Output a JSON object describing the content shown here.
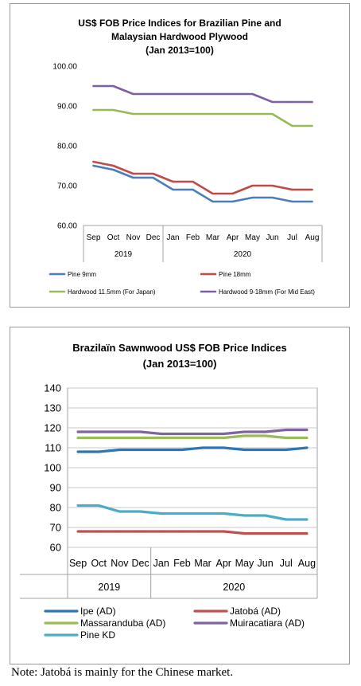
{
  "chart_data": [
    {
      "type": "line",
      "title": "US$ FOB Price Indices for Brazilian Pine and Malaysian Hardwood Plywood",
      "subtitle": "(Jan 2013=100)",
      "categories": [
        "Sep",
        "Oct",
        "Nov",
        "Dec",
        "Jan",
        "Feb",
        "Mar",
        "Apr",
        "May",
        "Jun",
        "Jul",
        "Aug"
      ],
      "year_groups": [
        {
          "label": "2019",
          "start": 0,
          "end": 3
        },
        {
          "label": "2020",
          "start": 4,
          "end": 11
        }
      ],
      "ylim": [
        60,
        100
      ],
      "yticks": [
        "60.00",
        "70.00",
        "80.00",
        "90.00",
        "100.00"
      ],
      "grid": false,
      "legend_position": "bottom",
      "series": [
        {
          "name": "Pine 9mm",
          "color": "#4a7ebb",
          "values": [
            75,
            74,
            72,
            72,
            69,
            69,
            66,
            66,
            67,
            67,
            66,
            66
          ]
        },
        {
          "name": "Pine 18mm",
          "color": "#be4b48",
          "values": [
            76,
            75,
            73,
            73,
            71,
            71,
            68,
            68,
            70,
            70,
            69,
            69
          ]
        },
        {
          "name": "Hardwood 11.5mm (For Japan)",
          "color": "#98b954",
          "values": [
            89,
            89,
            88,
            88,
            88,
            88,
            88,
            88,
            88,
            88,
            85,
            85
          ]
        },
        {
          "name": "Hardwood 9-18mm (For Mid East)",
          "color": "#7d60a0",
          "values": [
            95,
            95,
            93,
            93,
            93,
            93,
            93,
            93,
            93,
            91,
            91,
            91
          ]
        }
      ]
    },
    {
      "type": "line",
      "title": "Brazilaïn Sawnwood US$ FOB Price Indices",
      "subtitle": "(Jan 2013=100)",
      "categories": [
        "Sep",
        "Oct",
        "Nov",
        "Dec",
        "Jan",
        "Feb",
        "Mar",
        "Apr",
        "May",
        "Jun",
        "Jul",
        "Aug"
      ],
      "year_groups": [
        {
          "label": "2019",
          "start": 0,
          "end": 3
        },
        {
          "label": "2020",
          "start": 4,
          "end": 11
        }
      ],
      "ylim": [
        60,
        140
      ],
      "yticks": [
        "60",
        "70",
        "80",
        "90",
        "100",
        "110",
        "120",
        "130",
        "140"
      ],
      "grid": true,
      "legend_position": "bottom",
      "series": [
        {
          "name": "Ipe (AD)",
          "color": "#2e75b6",
          "values": [
            108,
            108,
            109,
            109,
            109,
            109,
            110,
            110,
            109,
            109,
            109,
            110
          ]
        },
        {
          "name": "Jatobá (AD)",
          "color": "#c0504d",
          "values": [
            68,
            68,
            68,
            68,
            68,
            68,
            68,
            68,
            67,
            67,
            67,
            67
          ]
        },
        {
          "name": "Massaranduba (AD)",
          "color": "#9bbb59",
          "values": [
            115,
            115,
            115,
            115,
            115,
            115,
            115,
            115,
            116,
            116,
            115,
            115
          ]
        },
        {
          "name": "Muiracatiara (AD)",
          "color": "#8064a2",
          "values": [
            118,
            118,
            118,
            118,
            117,
            117,
            117,
            117,
            118,
            118,
            119,
            119
          ]
        },
        {
          "name": "Pine KD",
          "color": "#4bacc6",
          "values": [
            81,
            81,
            78,
            78,
            77,
            77,
            77,
            77,
            76,
            76,
            74,
            74
          ]
        }
      ]
    }
  ],
  "note": "Note: Jatobá is mainly for the Chinese market."
}
